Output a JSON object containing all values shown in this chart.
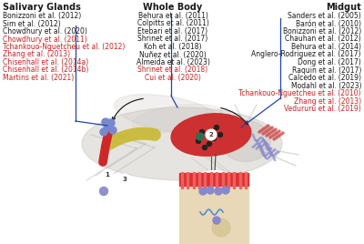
{
  "bg_color": "#ffffff",
  "salivary_glands_title": "Salivary Glands",
  "salivary_glands_black": [
    "Bonizzoni et al. (2012)",
    "Sim et al. (2012)",
    "Chowdhury et al. (2020)"
  ],
  "salivary_glands_red": [
    "Chowdhury et al. (2011)",
    "Tchankouo-Nguetcheu et al. (2012)",
    "Zhang et al. (2013)",
    "Chisenhall et al. (2014a)",
    "Chisenhall et al. (2014b)",
    "Martins et al. (2021)"
  ],
  "whole_body_title": "Whole Body",
  "whole_body_black": [
    "Behura et al. (2011)",
    "Colpitts et al. (2011)",
    "Etebari et al. (2017)",
    "Shrinet et al. (2017)",
    "Koh et al. (2018)",
    "Nuñez et al. (2020)",
    "Almeida et al. (2023)"
  ],
  "whole_body_red": [
    "Shrinet et al. (2018)",
    "Cui et al. (2020)"
  ],
  "midgut_title": "Midgut",
  "midgut_black": [
    "Sanders et al. (2005)",
    "Barón et al. (2010)",
    "Bonizzoni et al. (2012)",
    "Chauhan et al. (2012)",
    "Behura et al. (2014)",
    "Anglero-Rodriguez et al. (2017)",
    "Dong et al. (2017)",
    "Raquin et al. (2017)",
    "Calcedo et al. (2019)",
    "Modahl et al. (2023)"
  ],
  "midgut_red": [
    "Tchankouo-Nguetcheu et al. (2010)",
    "Zhang et al. (2013)",
    "Vedururu et al. (2019)"
  ],
  "text_black": "#1a1a1a",
  "text_red": "#cc2020",
  "line_blue": "#2244aa",
  "mosquito_gray": "#c8c4be",
  "mosquito_gray_alpha": 0.45,
  "label_fontsize": 5.5,
  "title_fontsize": 7.0
}
